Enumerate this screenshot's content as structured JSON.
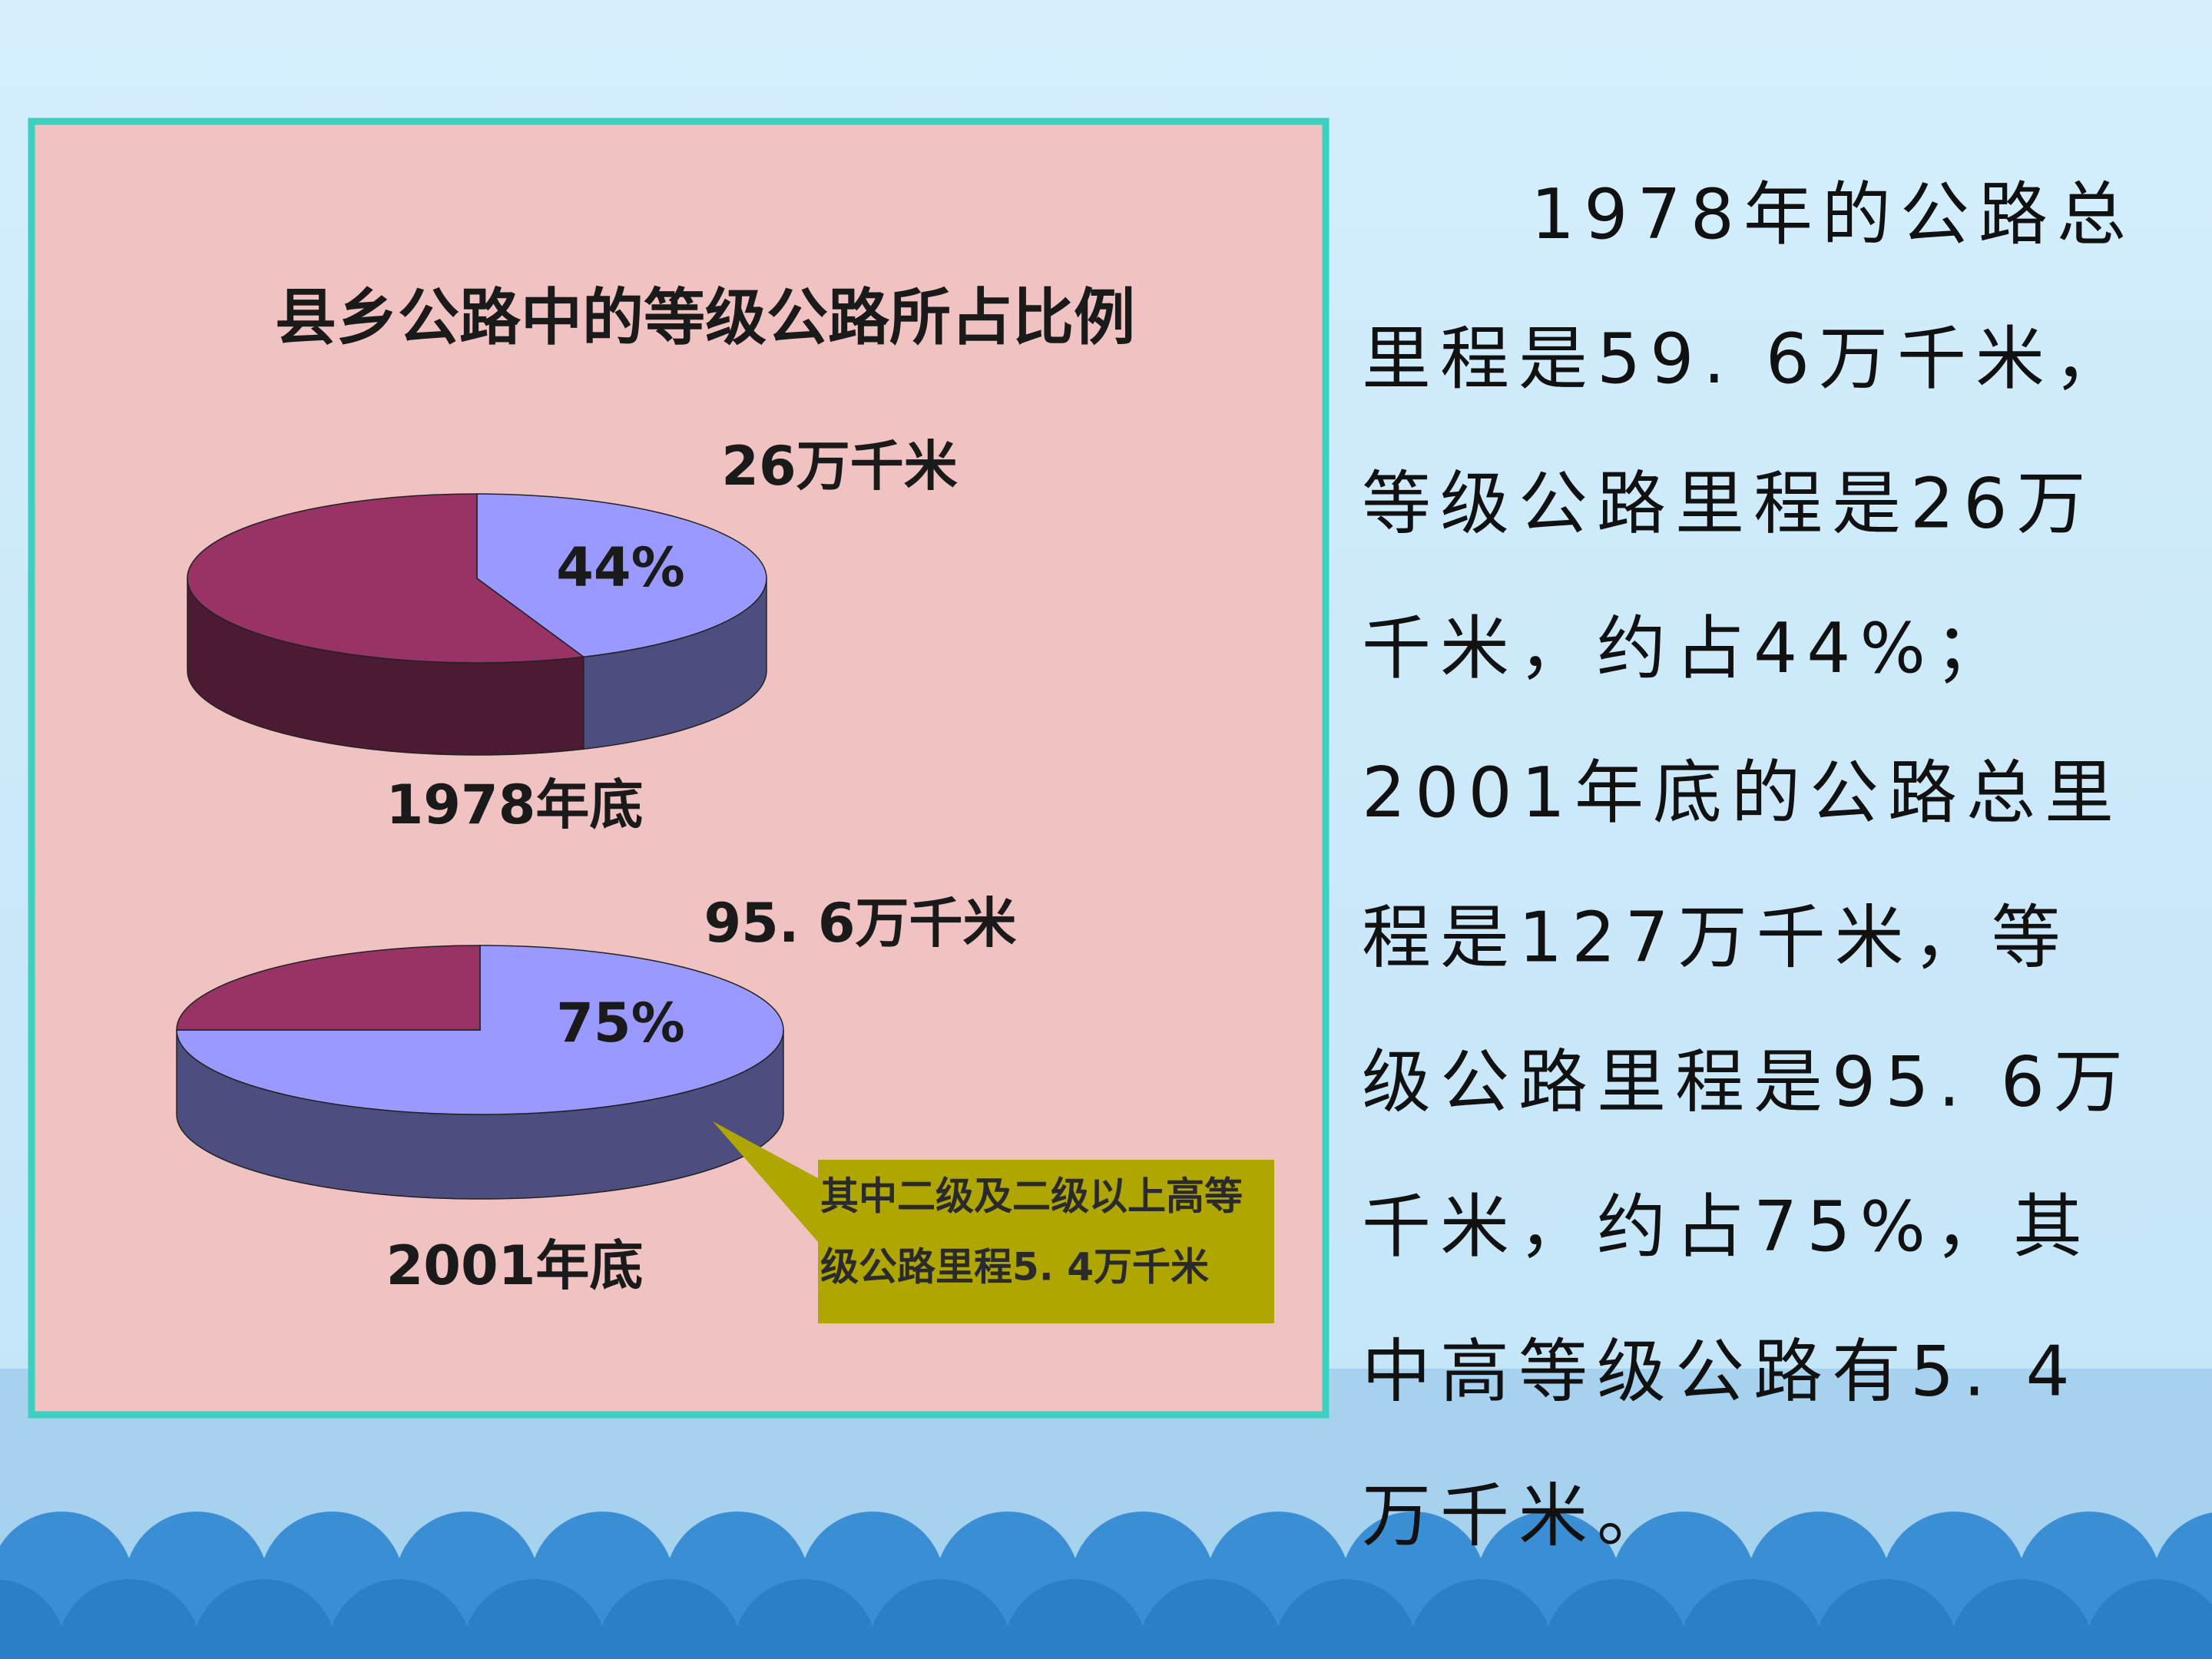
{
  "chart_title": "县乡公路中的等级公路所占比例",
  "chart_data": [
    {
      "type": "pie",
      "title": "1978年底",
      "annotation": "26万千米",
      "values": [
        44,
        56
      ],
      "value_labels": [
        "44%",
        null
      ],
      "colors": [
        "#9999ff",
        "#993366"
      ]
    },
    {
      "type": "pie",
      "title": "2001年底",
      "annotation": "95. 6万千米",
      "values": [
        75,
        25
      ],
      "value_labels": [
        "75%",
        null
      ],
      "colors": [
        "#9999ff",
        "#993366"
      ]
    }
  ],
  "callout": {
    "lines": [
      "其中二级及二级以上高等",
      "级公路里程5. 4万千米"
    ]
  },
  "paragraph": {
    "lines": [
      "1978年的公路总",
      "里程是59. 6万千米，",
      "等级公路里程是26万",
      "千米，约占44%；",
      "2001年底的公路总里",
      "程是127万千米，等",
      "级公路里程是95. 6万",
      "千米，约占75%，其",
      "中高等级公路有5. 4",
      "万千米。"
    ]
  }
}
